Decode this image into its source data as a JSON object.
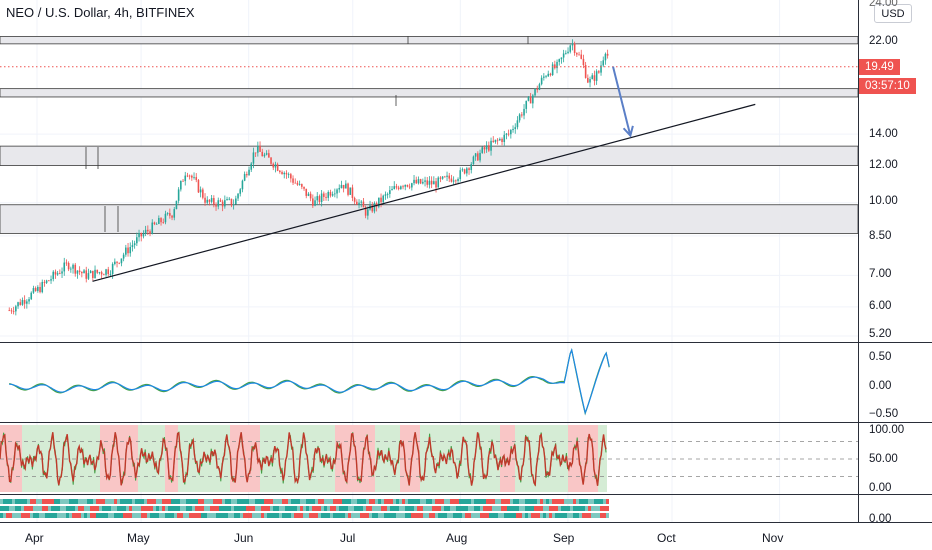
{
  "title": "NEO / U.S. Dollar, 4h, BITFINEX",
  "currency_button": "USD",
  "price_tag": "19.49",
  "countdown_tag": "03:57:10",
  "colors": {
    "up": "#26a69a",
    "down": "#ef5350",
    "zone": "#e8e8ec",
    "trend": "#131722",
    "arrow": "#5b7fc7",
    "osc_blue": "#1e88e5",
    "osc_green": "#43a047",
    "stoch_line": "#c0392b",
    "stoch_green_bg": "#d5ecd5",
    "stoch_red_bg": "#f9c6c6"
  },
  "chart_data": [
    {
      "type": "candlestick",
      "title": "NEO / U.S. Dollar, 4h, BITFINEX",
      "x_ticks": [
        "Apr",
        "May",
        "Jun",
        "Jul",
        "Aug",
        "Sep",
        "Oct",
        "Nov"
      ],
      "y_ticks": [
        "24.00",
        "22.00",
        "19.49",
        "14.00",
        "12.00",
        "10.00",
        "8.50",
        "7.00",
        "6.00",
        "5.20"
      ],
      "y_scale": "log",
      "last_price": 19.49,
      "close_path": [
        {
          "x": "2019-03-24",
          "y": 5.9
        },
        {
          "x": "2019-04-01",
          "y": 6.5
        },
        {
          "x": "2019-04-10",
          "y": 7.4
        },
        {
          "x": "2019-04-15",
          "y": 7.0
        },
        {
          "x": "2019-04-22",
          "y": 7.2
        },
        {
          "x": "2019-05-01",
          "y": 8.5
        },
        {
          "x": "2019-05-10",
          "y": 9.5
        },
        {
          "x": "2019-05-14",
          "y": 11.8
        },
        {
          "x": "2019-05-20",
          "y": 10.0
        },
        {
          "x": "2019-05-28",
          "y": 10.0
        },
        {
          "x": "2019-06-03",
          "y": 13.0
        },
        {
          "x": "2019-06-12",
          "y": 11.5
        },
        {
          "x": "2019-06-20",
          "y": 10.0
        },
        {
          "x": "2019-06-28",
          "y": 11.0
        },
        {
          "x": "2019-07-05",
          "y": 9.5
        },
        {
          "x": "2019-07-15",
          "y": 11.0
        },
        {
          "x": "2019-07-25",
          "y": 11.0
        },
        {
          "x": "2019-08-01",
          "y": 11.5
        },
        {
          "x": "2019-08-08",
          "y": 13.0
        },
        {
          "x": "2019-08-15",
          "y": 14.0
        },
        {
          "x": "2019-08-22",
          "y": 17.0
        },
        {
          "x": "2019-08-26",
          "y": 19.0
        },
        {
          "x": "2019-08-29",
          "y": 19.5
        },
        {
          "x": "2019-09-02",
          "y": 22.0
        },
        {
          "x": "2019-09-05",
          "y": 20.0
        },
        {
          "x": "2019-09-07",
          "y": 18.0
        },
        {
          "x": "2019-09-10",
          "y": 19.0
        },
        {
          "x": "2019-09-12",
          "y": 21.5
        },
        {
          "x": "2019-09-13",
          "y": 19.49
        }
      ],
      "zones": [
        [
          21.8,
          22.6
        ],
        [
          16.8,
          17.5
        ],
        [
          12.0,
          13.2
        ],
        [
          8.6,
          9.9
        ]
      ],
      "trendline": [
        {
          "x": "2019-04-17",
          "y": 6.8
        },
        {
          "x": "2019-10-25",
          "y": 16.2
        }
      ],
      "projection_arrow": [
        {
          "x": "2019-09-14",
          "y": 19.5
        },
        {
          "x": "2019-09-19",
          "y": 13.9
        }
      ]
    },
    {
      "type": "line",
      "y_ticks": [
        "0.50",
        "0.00",
        "−0.50"
      ],
      "ylim": [
        -0.6,
        0.7
      ],
      "series": [
        {
          "points": [
            {
              "x": "2019-03-24",
              "y": -0.02
            },
            {
              "x": "2019-05-01",
              "y": 0.0
            },
            {
              "x": "2019-06-01",
              "y": 0.05
            },
            {
              "x": "2019-07-01",
              "y": -0.02
            },
            {
              "x": "2019-08-01",
              "y": 0.02
            },
            {
              "x": "2019-08-25",
              "y": 0.15
            },
            {
              "x": "2019-08-31",
              "y": 0.0
            },
            {
              "x": "2019-09-02",
              "y": 0.62
            },
            {
              "x": "2019-09-06",
              "y": -0.4
            },
            {
              "x": "2019-09-12",
              "y": 0.6
            },
            {
              "x": "2019-09-13",
              "y": 0.35
            }
          ]
        }
      ]
    },
    {
      "type": "line",
      "y_ticks": [
        "100.00",
        "50.00",
        "0.00"
      ],
      "ylim": [
        0,
        100
      ],
      "reference_lines": [
        80,
        50,
        20
      ],
      "series": [
        {
          "oscillation_range": [
            5,
            95
          ]
        }
      ]
    },
    {
      "type": "heatmap",
      "y_ticks": [
        "0.00"
      ]
    }
  ]
}
